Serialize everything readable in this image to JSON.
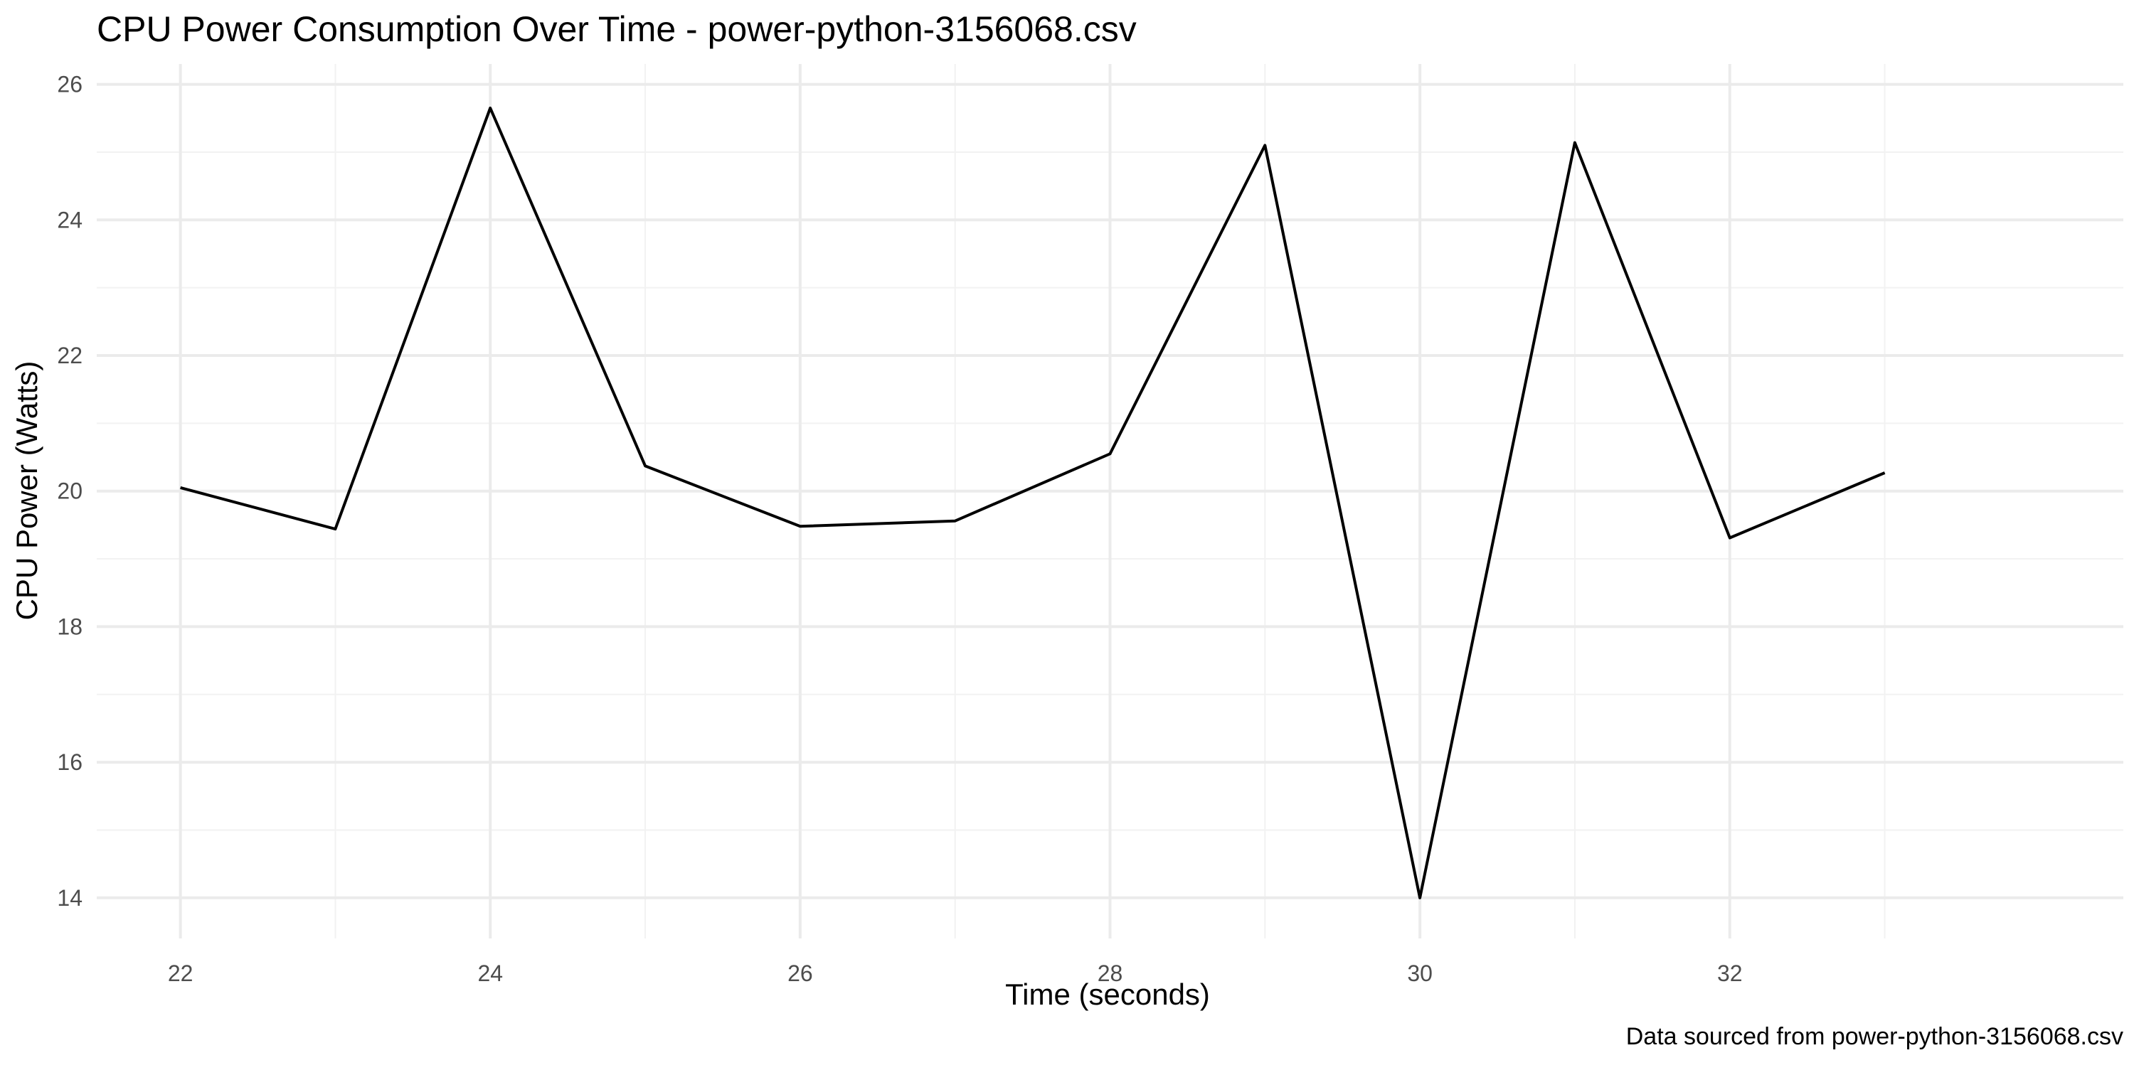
{
  "colors": {
    "background": "#ffffff",
    "line": "#000000",
    "grid_major": "#ebebeb",
    "grid_minor": "#f2f2f2",
    "tick_text": "#4d4d4d"
  },
  "chart_data": {
    "type": "line",
    "title": "CPU Power Consumption Over Time - power-python-3156068.csv",
    "xlabel": "Time (seconds)",
    "ylabel": "CPU Power (Watts)",
    "caption": "Data sourced from power-python-3156068.csv",
    "grid": true,
    "legend": "none",
    "xlim": [
      21.46,
      34.54
    ],
    "ylim": [
      13.4,
      26.3
    ],
    "x_ticks": [
      22,
      24,
      26,
      28,
      30,
      32
    ],
    "y_ticks": [
      14,
      16,
      18,
      20,
      22,
      24,
      26
    ],
    "x_minor": [
      23,
      25,
      27,
      29,
      31,
      33
    ],
    "y_minor": [
      15,
      17,
      19,
      21,
      23,
      25
    ],
    "series": [
      {
        "x": [
          22,
          23,
          24,
          25,
          26,
          27,
          28,
          29,
          30,
          31,
          32,
          33
        ],
        "values": [
          20.05,
          19.44,
          25.65,
          20.37,
          19.48,
          19.56,
          20.55,
          25.1,
          14.0,
          25.14,
          19.31,
          20.27
        ]
      }
    ]
  }
}
